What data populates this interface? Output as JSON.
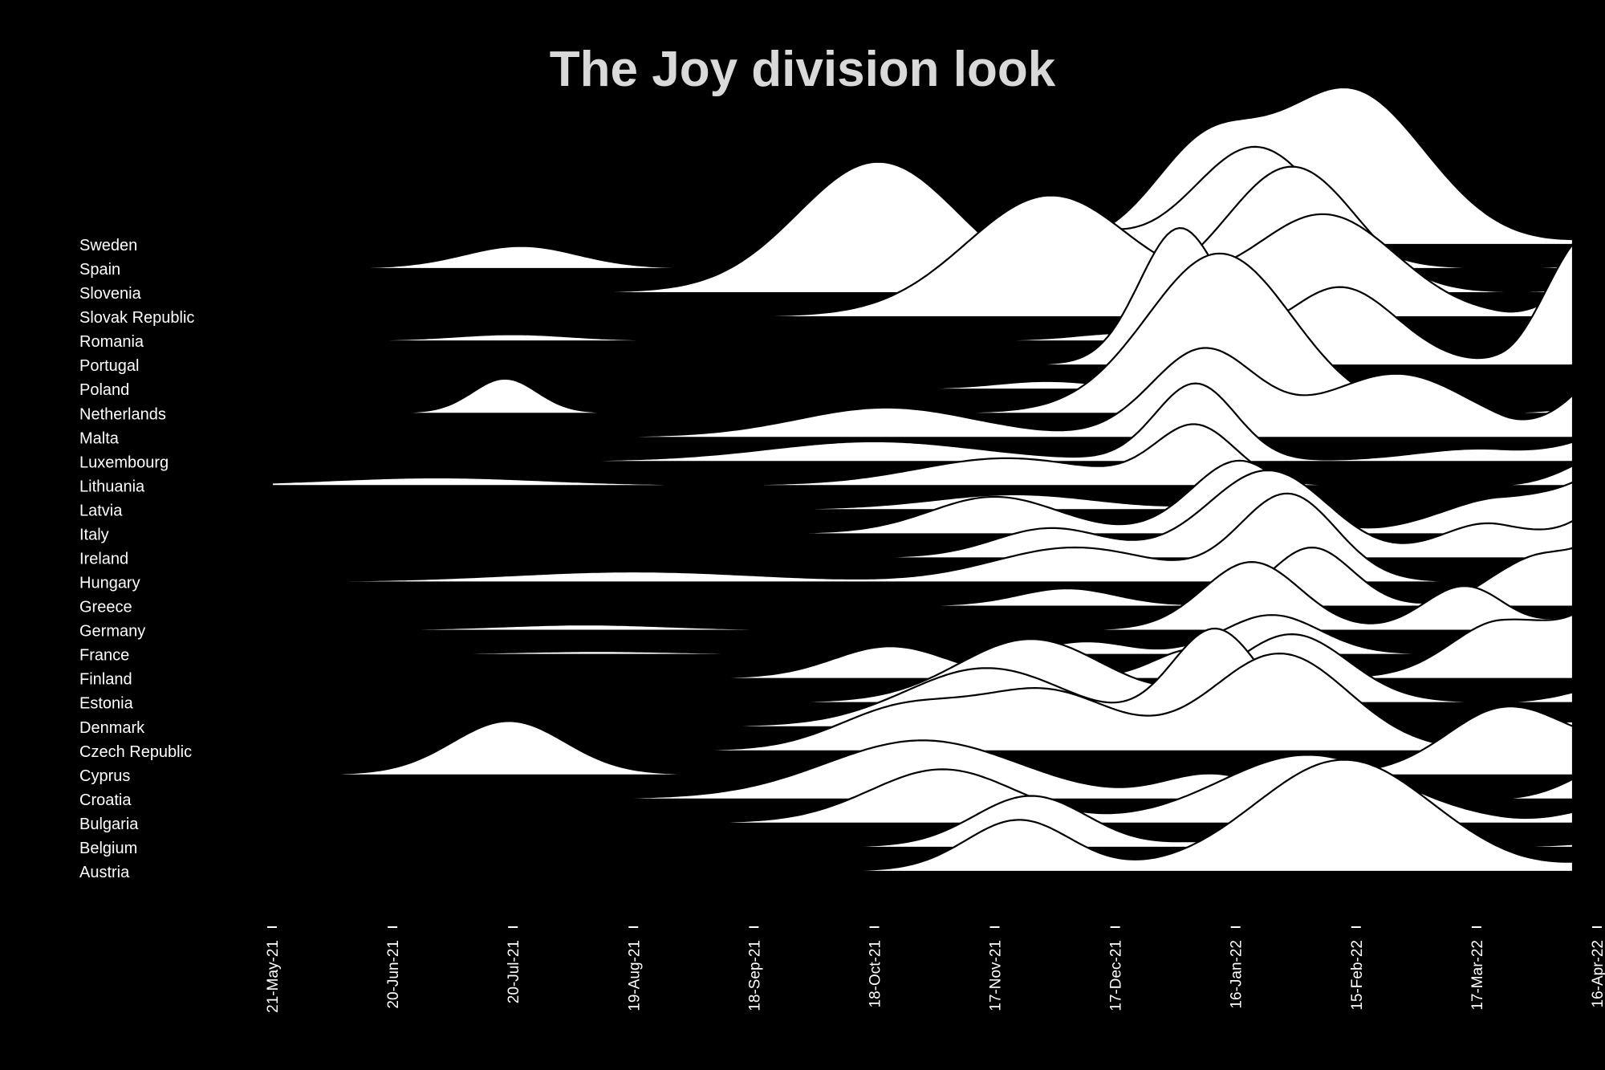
{
  "chart_data": {
    "type": "ridgeline",
    "title": "The Joy division look",
    "xlabel": "",
    "ylabel": "",
    "x_start": "2021-05-21",
    "x_end": "2022-04-16",
    "xlim": [
      "2021-05-21",
      "2022-04-16"
    ],
    "x_tick_labels": [
      "21-May-21",
      "20-Jun-21",
      "20-Jul-21",
      "19-Aug-21",
      "18-Sep-21",
      "18-Oct-21",
      "17-Nov-21",
      "17-Dec-21",
      "16-Jan-22",
      "15-Feb-22",
      "17-Mar-22",
      "16-Apr-22"
    ],
    "x_tick_dates": [
      "2021-05-21",
      "2021-06-20",
      "2021-07-20",
      "2021-08-19",
      "2021-09-18",
      "2021-10-18",
      "2021-11-17",
      "2021-12-17",
      "2022-01-16",
      "2022-02-15",
      "2022-03-17",
      "2022-04-16"
    ],
    "data_end": "2022-04-10",
    "grid": false,
    "legend": "none",
    "colors": {
      "background": "#000000",
      "fill": "#ffffff",
      "stroke": "#000000",
      "title": "#d9d9d9",
      "text": "#ffffff"
    },
    "series": [
      {
        "name": "Sweden",
        "peaks": [
          [
            "2022-01-08",
            1.8,
            13
          ],
          [
            "2022-02-13",
            3.2,
            19
          ]
        ],
        "tail": 0.05
      },
      {
        "name": "Spain",
        "peaks": [
          [
            "2021-07-22",
            0.45,
            14
          ],
          [
            "2021-11-28",
            1.0,
            18
          ],
          [
            "2022-01-21",
            2.5,
            16
          ]
        ],
        "tail": 0.04
      },
      {
        "name": "Slovenia",
        "peaks": [
          [
            "2021-10-19",
            2.7,
            20
          ],
          [
            "2022-01-30",
            2.6,
            16
          ]
        ],
        "tail": 0.06
      },
      {
        "name": "Slovak Republic",
        "peaks": [
          [
            "2021-12-01",
            2.5,
            21
          ],
          [
            "2022-02-07",
            2.1,
            18
          ]
        ],
        "tail": 0.7
      },
      {
        "name": "Romania",
        "peaks": [
          [
            "2021-07-20",
            0.12,
            14
          ],
          [
            "2021-12-20",
            0.15,
            12
          ]
        ],
        "tail": 0.1
      },
      {
        "name": "Portugal",
        "peaks": [
          [
            "2022-01-02",
            2.8,
            10
          ],
          [
            "2022-02-11",
            1.6,
            14
          ],
          [
            "2022-04-10",
            1.5,
            9
          ]
        ],
        "tail": 1.0
      },
      {
        "name": "Poland",
        "peaks": [
          [
            "2021-11-30",
            0.15,
            12
          ],
          [
            "2022-01-24",
            0.2,
            10
          ]
        ],
        "tail": 0.0
      },
      {
        "name": "Netherlands",
        "peaks": [
          [
            "2021-07-18",
            0.7,
            8
          ],
          [
            "2022-01-12",
            3.3,
            18
          ]
        ],
        "tail": 0.1
      },
      {
        "name": "Malta",
        "peaks": [
          [
            "2021-10-21",
            0.6,
            22
          ],
          [
            "2022-01-08",
            1.8,
            13
          ],
          [
            "2022-02-25",
            1.3,
            18
          ]
        ],
        "tail": 0.8
      },
      {
        "name": "Luxembourg",
        "peaks": [
          [
            "2021-10-18",
            0.4,
            26
          ],
          [
            "2022-01-06",
            1.6,
            10
          ],
          [
            "2022-03-18",
            0.25,
            16
          ]
        ],
        "tail": 0.3
      },
      {
        "name": "Lithuania",
        "peaks": [
          [
            "2021-07-01",
            0.15,
            26
          ],
          [
            "2021-11-20",
            0.55,
            22
          ],
          [
            "2022-01-06",
            1.2,
            10
          ]
        ],
        "tail": 0.4
      },
      {
        "name": "Latvia",
        "peaks": [
          [
            "2021-11-22",
            0.3,
            20
          ],
          [
            "2022-01-17",
            0.1,
            10
          ]
        ],
        "tail": 0.1
      },
      {
        "name": "Italy",
        "peaks": [
          [
            "2021-11-17",
            0.75,
            16
          ],
          [
            "2022-01-17",
            1.5,
            12
          ],
          [
            "2022-03-25",
            0.75,
            16
          ]
        ],
        "tail": 0.6
      },
      {
        "name": "Ireland",
        "peaks": [
          [
            "2021-12-01",
            0.6,
            14
          ],
          [
            "2022-01-24",
            1.8,
            15
          ],
          [
            "2022-03-20",
            0.7,
            12
          ]
        ],
        "tail": 0.6
      },
      {
        "name": "Hungary",
        "peaks": [
          [
            "2021-08-19",
            0.2,
            30
          ],
          [
            "2021-12-07",
            0.7,
            20
          ],
          [
            "2022-01-29",
            1.8,
            12
          ]
        ],
        "tail": 0.1
      },
      {
        "name": "Greece",
        "peaks": [
          [
            "2021-12-05",
            0.35,
            12
          ],
          [
            "2022-02-04",
            1.2,
            10
          ],
          [
            "2022-03-30",
            0.9,
            10
          ]
        ],
        "tail": 0.7
      },
      {
        "name": "Germany",
        "peaks": [
          [
            "2021-08-07",
            0.1,
            20
          ],
          [
            "2022-01-20",
            1.4,
            12
          ],
          [
            "2022-03-14",
            0.9,
            10
          ]
        ],
        "tail": 0.3
      },
      {
        "name": "France",
        "peaks": [
          [
            "2021-08-10",
            0.05,
            18
          ],
          [
            "2021-12-10",
            0.25,
            10
          ],
          [
            "2022-01-25",
            0.8,
            12
          ]
        ],
        "tail": 0.2
      },
      {
        "name": "Finland",
        "peaks": [
          [
            "2021-10-22",
            0.65,
            14
          ],
          [
            "2022-01-06",
            0.6,
            10
          ],
          [
            "2022-03-24",
            1.2,
            13
          ]
        ],
        "tail": 0.8
      },
      {
        "name": "Estonia",
        "peaks": [
          [
            "2021-11-26",
            1.3,
            18
          ],
          [
            "2022-01-30",
            1.4,
            14
          ]
        ],
        "tail": 0.2
      },
      {
        "name": "Denmark",
        "peaks": [
          [
            "2021-11-15",
            1.2,
            20
          ],
          [
            "2022-01-11",
            2.0,
            11
          ]
        ],
        "tail": 0.1
      },
      {
        "name": "Czech Republic",
        "peaks": [
          [
            "2021-10-25",
            0.85,
            16
          ],
          [
            "2021-11-30",
            1.2,
            17
          ],
          [
            "2022-01-27",
            2.0,
            17
          ]
        ],
        "tail": 0.35
      },
      {
        "name": "Cyprus",
        "peaks": [
          [
            "2021-07-19",
            1.1,
            14
          ],
          [
            "2022-03-25",
            1.4,
            15
          ]
        ],
        "tail": 0.2
      },
      {
        "name": "Croatia",
        "peaks": [
          [
            "2021-10-30",
            1.2,
            24
          ],
          [
            "2022-01-10",
            0.5,
            12
          ]
        ],
        "tail": 0.4
      },
      {
        "name": "Bulgaria",
        "peaks": [
          [
            "2021-11-04",
            1.1,
            18
          ],
          [
            "2022-02-03",
            1.4,
            22
          ]
        ],
        "tail": 0.2
      },
      {
        "name": "Belgium",
        "peaks": [
          [
            "2021-11-26",
            1.05,
            14
          ],
          [
            "2022-01-10",
            0.1,
            10
          ]
        ],
        "tail": 0.05
      },
      {
        "name": "Austria",
        "peaks": [
          [
            "2021-11-23",
            1.05,
            13
          ],
          [
            "2022-02-12",
            2.3,
            22
          ]
        ],
        "tail": 0.1
      }
    ]
  }
}
